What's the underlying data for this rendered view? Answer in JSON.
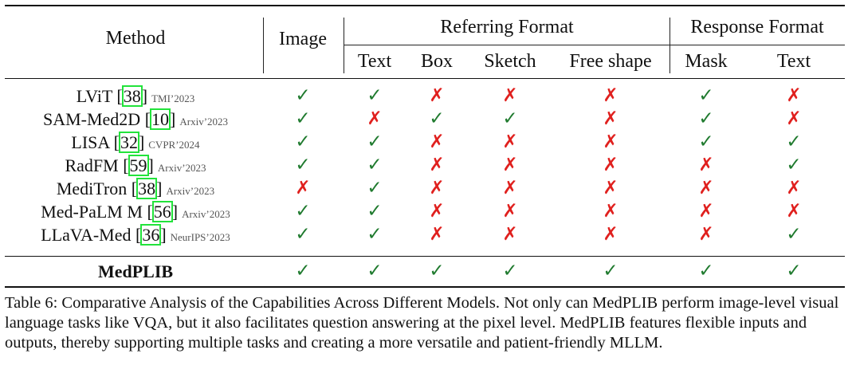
{
  "header": {
    "method": "Method",
    "image": "Image",
    "referring_group": "Referring Format",
    "response_group": "Response Format",
    "referring_cols": [
      "Text",
      "Box",
      "Sketch",
      "Free shape"
    ],
    "response_cols": [
      "Mask",
      "Text"
    ]
  },
  "marks": {
    "yes": "✓",
    "no": "✗"
  },
  "colors": {
    "yes": "#1f7a2e",
    "no": "#e0201e",
    "citation_box": "#22e33b"
  },
  "rows": [
    {
      "name": "LViT",
      "ref": "38",
      "venue": "TMI’2023",
      "values": [
        true,
        true,
        false,
        false,
        false,
        true,
        false
      ]
    },
    {
      "name": "SAM-Med2D",
      "ref": "10",
      "venue": "Arxiv’2023",
      "values": [
        true,
        false,
        true,
        true,
        false,
        true,
        false
      ]
    },
    {
      "name": "LISA",
      "ref": "32",
      "venue": "CVPR’2024",
      "values": [
        true,
        true,
        false,
        false,
        false,
        true,
        true
      ]
    },
    {
      "name": "RadFM",
      "ref": "59",
      "venue": "Arxiv’2023",
      "values": [
        true,
        true,
        false,
        false,
        false,
        false,
        true
      ]
    },
    {
      "name": "MediTron",
      "ref": "38",
      "venue": "Arxiv’2023",
      "values": [
        false,
        true,
        false,
        false,
        false,
        false,
        false
      ]
    },
    {
      "name": "Med-PaLM M",
      "ref": "56",
      "venue": "Arxiv’2023",
      "values": [
        true,
        true,
        false,
        false,
        false,
        false,
        false
      ]
    },
    {
      "name": "LLaVA-Med",
      "ref": "36",
      "venue": "NeurIPS’2023",
      "values": [
        true,
        true,
        false,
        false,
        false,
        false,
        true
      ]
    }
  ],
  "final_row": {
    "name": "MedPLIB",
    "values": [
      true,
      true,
      true,
      true,
      true,
      true,
      true
    ]
  },
  "caption": "Table 6: Comparative Analysis of the Capabilities Across Different Models. Not only can MedPLIB perform image-level visual language tasks like VQA, but it also facilitates question answering at the pixel level. MedPLIB features flexible inputs and outputs, thereby supporting multiple tasks and creating a more versatile and patient-friendly MLLM."
}
